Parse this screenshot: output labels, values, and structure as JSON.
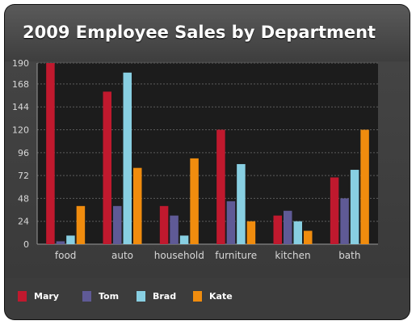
{
  "chart_data": {
    "type": "bar",
    "title": "2009 Employee Sales by Department",
    "categories": [
      "food",
      "auto",
      "household",
      "furniture",
      "kitchen",
      "bath"
    ],
    "series": [
      {
        "name": "Mary",
        "color": "#c0192e",
        "values": [
          190,
          160,
          40,
          120,
          30,
          70
        ]
      },
      {
        "name": "Tom",
        "color": "#5f5a96",
        "values": [
          3,
          40,
          30,
          45,
          35,
          48
        ]
      },
      {
        "name": "Brad",
        "color": "#88cfe2",
        "values": [
          9,
          180,
          9,
          84,
          24,
          78
        ]
      },
      {
        "name": "Kate",
        "color": "#f08c0e",
        "values": [
          40,
          80,
          90,
          24,
          14,
          120
        ]
      }
    ],
    "yticks": [
      0,
      24,
      48,
      72,
      96,
      120,
      144,
      168,
      190
    ],
    "ylim": [
      0,
      190
    ],
    "grid": true,
    "legend_position": "bottom"
  }
}
